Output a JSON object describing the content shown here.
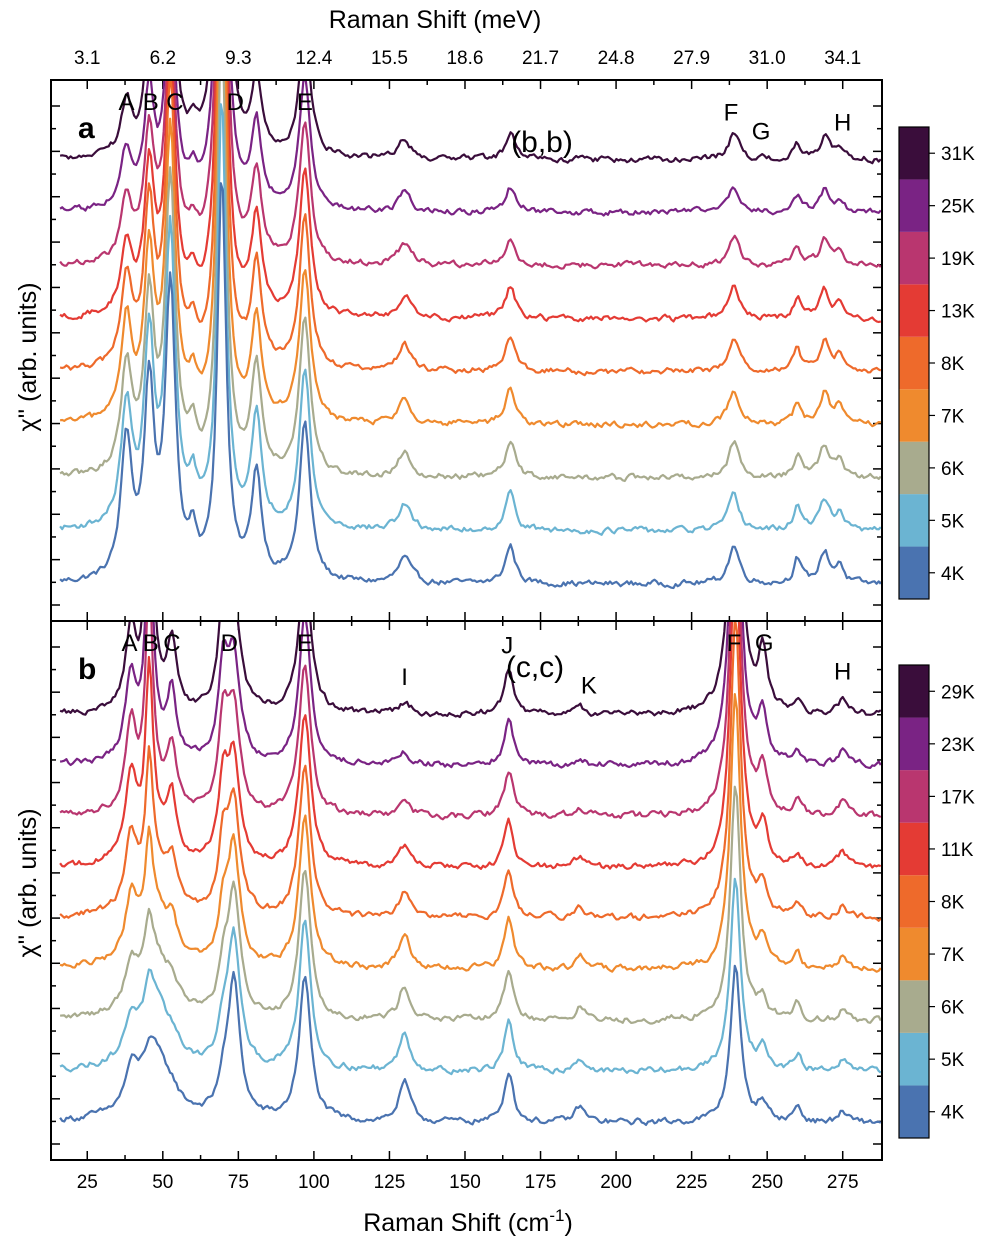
{
  "chart_data": {
    "type": "line",
    "x_axis": {
      "label": "Raman Shift (cm",
      "label_sup": "-1",
      "label_suffix": ")",
      "range": [
        13,
        288
      ],
      "ticks": [
        25,
        50,
        75,
        100,
        125,
        150,
        175,
        200,
        225,
        250,
        275
      ]
    },
    "top_axis": {
      "label": "Raman Shift (meV)",
      "tick_labels": [
        "3.1",
        "6.2",
        "9.3",
        "12.4",
        "15.5",
        "18.6",
        "21.7",
        "24.8",
        "27.9",
        "31.0",
        "34.1"
      ],
      "tick_positions_cm": [
        25,
        50,
        75,
        100,
        125,
        150,
        175,
        200,
        225,
        250,
        275
      ]
    },
    "y_axis_label": "χ'' (arb. units)",
    "colors": [
      "#4a73b0",
      "#6bb4d2",
      "#a8ab8e",
      "#ef8a2e",
      "#ee6a2b",
      "#e43b34",
      "#b9366f",
      "#7a2384",
      "#3a0d3b"
    ],
    "panels": [
      {
        "letter": "a",
        "polarization": "(b,b)",
        "offset": 0.42,
        "baseline": 0.05,
        "y_max": 3.95,
        "temperatures": [
          "4K",
          "5K",
          "6K",
          "7K",
          "8K",
          "13K",
          "19K",
          "25K",
          "31K"
        ],
        "peak_labels": [
          {
            "label": "A",
            "x": 38
          },
          {
            "label": "B",
            "x": 46
          },
          {
            "label": "C",
            "x": 54
          },
          {
            "label": "D",
            "x": 74
          },
          {
            "label": "E",
            "x": 97
          },
          {
            "label": "F",
            "x": 238
          },
          {
            "label": "G",
            "x": 248
          },
          {
            "label": "H",
            "x": 275
          }
        ],
        "peaks": [
          {
            "x": 38,
            "w": 2.2,
            "a": [
              1.1,
              0.95,
              0.85,
              0.8,
              0.7,
              0.55,
              0.5,
              0.45,
              0.4
            ]
          },
          {
            "x": 45.5,
            "w": 2.0,
            "a": [
              1.5,
              1.45,
              1.35,
              1.3,
              1.25,
              1.1,
              1.0,
              0.9,
              0.85
            ]
          },
          {
            "x": 52.5,
            "w": 2.0,
            "a": [
              2.3,
              2.3,
              2.3,
              2.25,
              2.2,
              2.05,
              1.9,
              1.75,
              1.6
            ]
          },
          {
            "x": 60,
            "w": 1.6,
            "a": [
              0.3,
              0.28,
              0.26,
              0.25,
              0.24,
              0.22,
              0.2,
              0.18,
              0.15
            ]
          },
          {
            "x": 69.5,
            "w": 1.7,
            "a": [
              3.2,
              3.4,
              3.6,
              3.9,
              4.1,
              4.3,
              4.5,
              4.6,
              4.8
            ]
          },
          {
            "x": 81,
            "w": 2.0,
            "a": [
              0.85,
              0.85,
              0.85,
              0.82,
              0.8,
              0.75,
              0.7,
              0.65,
              0.6
            ]
          },
          {
            "x": 97,
            "w": 2.2,
            "a": [
              1.25,
              1.25,
              1.25,
              1.22,
              1.2,
              1.15,
              1.1,
              1.05,
              1.0
            ]
          },
          {
            "x": 130,
            "w": 2.5,
            "a": [
              0.2,
              0.2,
              0.2,
              0.2,
              0.2,
              0.18,
              0.17,
              0.15,
              0.15
            ]
          },
          {
            "x": 165,
            "w": 2.0,
            "a": [
              0.3,
              0.3,
              0.28,
              0.28,
              0.27,
              0.25,
              0.23,
              0.2,
              0.2
            ]
          },
          {
            "x": 239,
            "w": 2.2,
            "a": [
              0.3,
              0.28,
              0.28,
              0.28,
              0.26,
              0.25,
              0.23,
              0.2,
              0.2
            ]
          },
          {
            "x": 260,
            "w": 1.5,
            "a": [
              0.2,
              0.2,
              0.18,
              0.18,
              0.17,
              0.15,
              0.14,
              0.13,
              0.12
            ]
          },
          {
            "x": 269,
            "w": 2.0,
            "a": [
              0.25,
              0.25,
              0.25,
              0.25,
              0.23,
              0.22,
              0.2,
              0.18,
              0.18
            ]
          },
          {
            "x": 274,
            "w": 1.5,
            "a": [
              0.15,
              0.15,
              0.15,
              0.15,
              0.14,
              0.13,
              0.12,
              0.1,
              0.1
            ]
          }
        ]
      },
      {
        "letter": "b",
        "polarization": "(c,c)",
        "offset": 0.39,
        "baseline": 0.05,
        "y_max": 3.8,
        "temperatures": [
          "4K",
          "5K",
          "6K",
          "7K",
          "8K",
          "11K",
          "17K",
          "23K",
          "29K"
        ],
        "peak_labels": [
          {
            "label": "A",
            "x": 39
          },
          {
            "label": "B",
            "x": 46
          },
          {
            "label": "C",
            "x": 53
          },
          {
            "label": "D",
            "x": 72
          },
          {
            "label": "E",
            "x": 97
          },
          {
            "label": "I",
            "x": 130
          },
          {
            "label": "J",
            "x": 164
          },
          {
            "label": "K",
            "x": 191
          },
          {
            "label": "F",
            "x": 239
          },
          {
            "label": "G",
            "x": 249
          },
          {
            "label": "H",
            "x": 275
          }
        ],
        "peaks": [
          {
            "x": 39.5,
            "w": 2.2,
            "a": [
              0.25,
              0.25,
              0.3,
              0.4,
              0.5,
              0.6,
              0.65,
              0.65,
              0.6
            ]
          },
          {
            "x": 45.5,
            "w": 1.4,
            "a": [
              0.1,
              0.2,
              0.35,
              0.6,
              0.9,
              1.3,
              1.6,
              1.8,
              2.0
            ]
          },
          {
            "x": 47,
            "w": 6.5,
            "a": [
              0.55,
              0.55,
              0.5,
              0.45,
              0.35,
              0.25,
              0.15,
              0.1,
              0.05
            ]
          },
          {
            "x": 53,
            "w": 1.8,
            "a": [
              0.05,
              0.08,
              0.12,
              0.2,
              0.3,
              0.4,
              0.45,
              0.5,
              0.5
            ]
          },
          {
            "x": 70,
            "w": 1.8,
            "a": [
              0.2,
              0.25,
              0.3,
              0.4,
              0.5,
              0.6,
              0.65,
              0.7,
              0.75
            ]
          },
          {
            "x": 73.5,
            "w": 2.4,
            "a": [
              1.05,
              1.0,
              0.95,
              0.9,
              0.85,
              0.8,
              0.8,
              0.8,
              0.8
            ]
          },
          {
            "x": 97,
            "w": 2.3,
            "a": [
              1.1,
              1.15,
              1.15,
              1.15,
              1.15,
              1.15,
              1.15,
              1.15,
              1.15
            ]
          },
          {
            "x": 130,
            "w": 2.2,
            "a": [
              0.3,
              0.28,
              0.26,
              0.25,
              0.2,
              0.15,
              0.12,
              0.1,
              0.08
            ]
          },
          {
            "x": 164.5,
            "w": 1.8,
            "a": [
              0.4,
              0.4,
              0.4,
              0.4,
              0.38,
              0.36,
              0.35,
              0.35,
              0.35
            ]
          },
          {
            "x": 188,
            "w": 2.0,
            "a": [
              0.12,
              0.1,
              0.1,
              0.1,
              0.08,
              0.08,
              0.06,
              0.05,
              0.05
            ]
          },
          {
            "x": 239.5,
            "w": 2.0,
            "a": [
              1.2,
              1.5,
              1.8,
              2.1,
              2.3,
              2.5,
              2.6,
              2.7,
              2.75
            ]
          },
          {
            "x": 248.5,
            "w": 1.8,
            "a": [
              0.15,
              0.15,
              0.15,
              0.2,
              0.25,
              0.3,
              0.35,
              0.4,
              0.45
            ]
          },
          {
            "x": 260,
            "w": 1.5,
            "a": [
              0.12,
              0.12,
              0.12,
              0.12,
              0.12,
              0.1,
              0.1,
              0.1,
              0.1
            ]
          },
          {
            "x": 275,
            "w": 1.8,
            "a": [
              0.08,
              0.08,
              0.08,
              0.1,
              0.1,
              0.12,
              0.12,
              0.12,
              0.12
            ]
          }
        ]
      }
    ]
  }
}
